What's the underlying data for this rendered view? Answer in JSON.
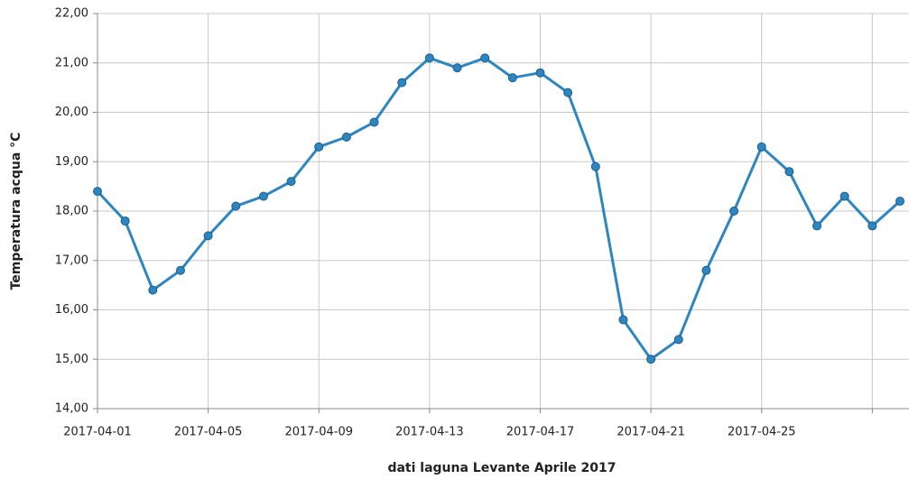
{
  "chart_data": {
    "type": "line",
    "title": "dati laguna Levante Aprile 2017",
    "y_label": "Temperatura acqua °C",
    "x": [
      "2017-04-01",
      "2017-04-02",
      "2017-04-03",
      "2017-04-04",
      "2017-04-05",
      "2017-04-06",
      "2017-04-07",
      "2017-04-08",
      "2017-04-09",
      "2017-04-10",
      "2017-04-11",
      "2017-04-12",
      "2017-04-13",
      "2017-04-14",
      "2017-04-15",
      "2017-04-16",
      "2017-04-17",
      "2017-04-18",
      "2017-04-19",
      "2017-04-20",
      "2017-04-21",
      "2017-04-22",
      "2017-04-23",
      "2017-04-24",
      "2017-04-25",
      "2017-04-26",
      "2017-04-27",
      "2017-04-28",
      "2017-04-29",
      "2017-04-30"
    ],
    "series": [
      {
        "name": "Temperatura acqua",
        "color": "#2e86c1",
        "values": [
          18.4,
          17.8,
          16.4,
          16.8,
          17.5,
          18.1,
          18.3,
          18.6,
          19.3,
          19.5,
          19.8,
          20.6,
          21.1,
          20.9,
          21.1,
          20.7,
          20.8,
          20.4,
          18.9,
          15.8,
          15.0,
          15.4,
          16.8,
          18.0,
          19.3,
          18.8,
          17.7,
          18.3,
          17.7,
          18.2
        ]
      }
    ],
    "xlim": [
      "2017-04-01",
      "2017-04-30"
    ],
    "xticks": [
      "2017-04-01",
      "2017-04-05",
      "2017-04-09",
      "2017-04-13",
      "2017-04-17",
      "2017-04-21",
      "2017-04-25",
      {
        "value": "2017-04-29",
        "label": null
      }
    ],
    "ylim": [
      14,
      22
    ],
    "yticks": [
      {
        "value": 14,
        "label": "14,00"
      },
      {
        "value": 15,
        "label": "15,00"
      },
      {
        "value": 16,
        "label": "16,00"
      },
      {
        "value": 17,
        "label": "17,00"
      },
      {
        "value": 18,
        "label": "18,00"
      },
      {
        "value": 19,
        "label": "19,00"
      },
      {
        "value": 20,
        "label": "20,00"
      },
      {
        "value": 21,
        "label": "21,00"
      },
      {
        "value": 22,
        "label": "22,00"
      }
    ],
    "grid": true
  }
}
